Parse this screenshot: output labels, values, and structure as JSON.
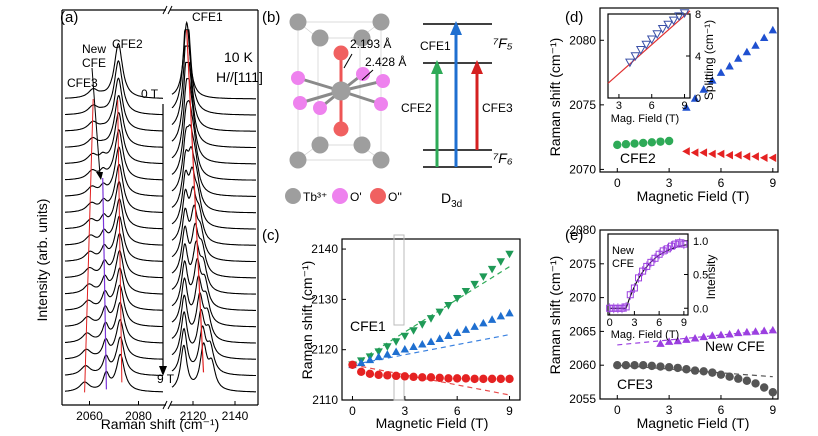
{
  "chart_data": [
    {
      "panel": "(a)",
      "type": "line",
      "xlabel": "Raman shift (cm⁻¹)",
      "ylabel": "Intensity (arb. units)",
      "xticks_left": [
        "2060",
        "2080"
      ],
      "xticks_right": [
        "2120",
        "2140"
      ],
      "xlim_left": [
        2050,
        2090
      ],
      "xlim_right": [
        2110,
        2150
      ],
      "annotations": {
        "cfe3": "CFE3",
        "new_cfe": "New CFE",
        "cfe2": "CFE2",
        "cfe1": "CFE1",
        "temp": "10 K",
        "field_dir": "H//[111]",
        "start_field": "0 T",
        "end_field": "9 T"
      },
      "fields_T": [
        0,
        0.5,
        1,
        1.5,
        2,
        2.5,
        3,
        3.5,
        4,
        4.5,
        5,
        5.5,
        6,
        6.5,
        7,
        7.5,
        8,
        8.5,
        9
      ],
      "peaks": {
        "cfe3_x": [
          2061.5,
          2061.5,
          2061.4,
          2061.3,
          2061.2,
          2061.1,
          2061,
          2060.8,
          2060.6,
          2060.4,
          2060.2,
          2060,
          2059.8,
          2059.5,
          2059.2,
          2059,
          2058.7,
          2058.4,
          2058
        ],
        "cfe2_x": [
          2071.8,
          2071.8,
          2071.8,
          2071.9,
          2071.9,
          2072,
          2072,
          2072.1,
          2072.1,
          2072.2,
          2072.2,
          2072.3,
          2072.3,
          2072.4,
          2072.4,
          2072.5,
          2072.5,
          2072.6,
          2072.6
        ],
        "cfe1_x": [
          2117,
          2117,
          2117.2,
          2117.5,
          2118,
          2118.4,
          2118.8,
          2119.2,
          2119.6,
          2120,
          2120.5,
          2121,
          2121.5,
          2122,
          2122.6,
          2123.2,
          2123.8,
          2124.5,
          2125
        ]
      }
    },
    {
      "panel": "(b)",
      "type": "diagram",
      "bond1": "2.193 Å",
      "bond2": "2.428 Å",
      "legend": [
        "Tb³⁺",
        "O'",
        "O''"
      ],
      "levels": {
        "upper": "⁷F₅",
        "lower": "⁷F₆"
      },
      "transitions": [
        "CFE1",
        "CFE2",
        "CFE3"
      ],
      "symmetry": "D",
      "symmetry_sub": "3d",
      "colors": {
        "tb": "#9e9e9e",
        "o_prime": "#ee82ee",
        "o_dprime": "#f06060",
        "cfe1": "#1f6fd0",
        "cfe2": "#2eaa57",
        "cfe3": "#d42020"
      }
    },
    {
      "panel": "(c)",
      "type": "scatter",
      "xlabel": "Magnetic Field (T)",
      "ylabel": "Raman shift (cm⁻¹)",
      "xlim": [
        -0.6,
        9.6
      ],
      "ylim": [
        2110,
        2142
      ],
      "xticks": [
        0,
        3,
        6,
        9
      ],
      "yticks": [
        2110,
        2120,
        2130,
        2140
      ],
      "annotation": "CFE1",
      "series": [
        {
          "color": "#1f9a57",
          "marker": "triangle-down",
          "x": [
            0,
            0.5,
            1,
            1.5,
            2,
            2.5,
            3,
            3.5,
            4,
            4.5,
            5,
            5.5,
            6,
            6.5,
            7,
            7.5,
            8,
            8.5,
            9
          ],
          "y": [
            2117,
            2117.8,
            2118.6,
            2119.6,
            2120.6,
            2121.6,
            2122.7,
            2123.8,
            2125,
            2126.2,
            2127.5,
            2128.8,
            2130.2,
            2131.6,
            2133,
            2134.5,
            2136,
            2137.5,
            2139
          ]
        },
        {
          "color": "#1f6fd0",
          "marker": "triangle-up",
          "x": [
            0,
            0.5,
            1,
            1.5,
            2,
            2.5,
            3,
            3.5,
            4,
            4.5,
            5,
            5.5,
            6,
            6.5,
            7,
            7.5,
            8,
            8.5,
            9
          ],
          "y": [
            2117,
            2117.4,
            2118,
            2118.6,
            2119.1,
            2119.6,
            2120.1,
            2120.6,
            2121.1,
            2121.6,
            2122.2,
            2122.8,
            2123.4,
            2124,
            2124.6,
            2125.3,
            2126,
            2126.7,
            2127.3
          ]
        },
        {
          "color": "#e52222",
          "marker": "circle",
          "x": [
            0,
            0.5,
            1,
            1.5,
            2,
            2.5,
            3,
            3.5,
            4,
            4.5,
            5,
            5.5,
            6,
            6.5,
            7,
            7.5,
            8,
            8.5,
            9
          ],
          "y": [
            2117,
            2115.6,
            2115.2,
            2115,
            2114.9,
            2114.8,
            2114.7,
            2114.6,
            2114.5,
            2114.5,
            2114.4,
            2114.3,
            2114.3,
            2114.3,
            2114.2,
            2114.2,
            2114.2,
            2114.2,
            2114.2
          ]
        }
      ],
      "fits": [
        {
          "color": "#2eaa57",
          "x": [
            0,
            9
          ],
          "y": [
            2117,
            2136.5
          ]
        },
        {
          "color": "#3b82e0",
          "x": [
            0,
            9
          ],
          "y": [
            2117,
            2123
          ]
        },
        {
          "color": "#e84a4a",
          "x": [
            0,
            9
          ],
          "y": [
            2117,
            2111
          ]
        }
      ]
    },
    {
      "panel": "(d)",
      "type": "scatter",
      "xlabel": "Magnetic Field (T)",
      "ylabel": "Raman shift (cm⁻¹)",
      "xlim": [
        -1,
        9.3
      ],
      "ylim": [
        2069.8,
        2082.5
      ],
      "xticks": [
        0,
        3,
        6,
        9
      ],
      "yticks": [
        2070,
        2075,
        2080
      ],
      "annotation": "CFE2",
      "series": [
        {
          "color": "#2eaa57",
          "marker": "circle",
          "x": [
            0,
            0.5,
            1,
            1.5,
            2,
            2.5,
            3
          ],
          "y": [
            2071.9,
            2071.95,
            2072,
            2072.05,
            2072.1,
            2072.15,
            2072.2
          ]
        },
        {
          "color": "#1f50d0",
          "marker": "triangle-up",
          "x": [
            4,
            4.5,
            5,
            5.5,
            6,
            6.5,
            7,
            7.5,
            8,
            8.5,
            9
          ],
          "y": [
            2074.8,
            2075.5,
            2076.2,
            2076.9,
            2077.5,
            2078,
            2078.6,
            2079.1,
            2079.6,
            2080.2,
            2080.8
          ]
        },
        {
          "color": "#e52222",
          "marker": "triangle-left",
          "x": [
            4,
            4.5,
            5,
            5.5,
            6,
            6.5,
            7,
            7.5,
            8,
            8.5,
            9
          ],
          "y": [
            2071.4,
            2071.3,
            2071.3,
            2071.2,
            2071.2,
            2071.1,
            2071.1,
            2071,
            2071,
            2070.9,
            2070.9
          ]
        }
      ],
      "inset": {
        "xlabel": "Mag. Field (T)",
        "ylabel": "Splitting (cm⁻¹)",
        "xlim": [
          2,
          9.5
        ],
        "ylim": [
          0,
          8
        ],
        "xticks": [
          3,
          6,
          9
        ],
        "yticks": [
          0,
          4,
          8
        ],
        "x": [
          4,
          4.5,
          5,
          5.5,
          6,
          6.5,
          7,
          7.5,
          8,
          8.5,
          9
        ],
        "y": [
          3.4,
          4,
          4.6,
          5.1,
          5.6,
          6.1,
          6.6,
          7,
          7.4,
          7.8,
          8.1
        ],
        "fit": {
          "x": [
            2,
            9.5
          ],
          "y": [
            1.4,
            8.3
          ]
        }
      }
    },
    {
      "panel": "(e)",
      "type": "scatter",
      "xlabel": "Magnetic Field (T)",
      "ylabel": "Raman shift (cm⁻¹)",
      "xlim": [
        -1,
        9.3
      ],
      "ylim": [
        2055,
        2080
      ],
      "xticks": [
        0,
        3,
        6,
        9
      ],
      "yticks": [
        2055,
        2060,
        2065,
        2070,
        2075,
        2080
      ],
      "annotations": {
        "new_cfe": "New CFE",
        "cfe3": "CFE3"
      },
      "series": [
        {
          "color": "#9b3fe0",
          "marker": "triangle-up",
          "x": [
            2.5,
            3,
            3.5,
            4,
            4.5,
            5,
            5.5,
            6,
            6.5,
            7,
            7.5,
            8,
            8.5,
            9
          ],
          "y": [
            2063.2,
            2063.5,
            2063.6,
            2063.8,
            2064,
            2064.2,
            2064.4,
            2064.5,
            2064.6,
            2064.8,
            2064.9,
            2065,
            2065.1,
            2065.2
          ]
        },
        {
          "color": "#555555",
          "marker": "circle",
          "x": [
            0,
            0.5,
            1,
            1.5,
            2,
            2.5,
            3,
            3.5,
            4,
            4.5,
            5,
            5.5,
            6,
            6.5,
            7,
            7.5,
            8,
            8.5,
            9
          ],
          "y": [
            2060,
            2060,
            2060,
            2060,
            2059.9,
            2059.8,
            2059.7,
            2059.6,
            2059.4,
            2059.2,
            2059.1,
            2058.9,
            2058.6,
            2058.3,
            2058,
            2057.7,
            2057.3,
            2056.7,
            2056
          ]
        }
      ],
      "fits": [
        {
          "color": "#9b3fe0",
          "x": [
            0,
            9
          ],
          "y": [
            2063,
            2065.2
          ]
        },
        {
          "color": "#555555",
          "x": [
            0,
            9
          ],
          "y": [
            2060,
            2058.3
          ]
        }
      ],
      "inset": {
        "label": "New CFE",
        "xlabel": "Mag. Field (T)",
        "ylabel": "Intensity",
        "xlim": [
          -0.2,
          9.5
        ],
        "ylim": [
          -0.1,
          1.1
        ],
        "xticks": [
          0,
          3,
          6,
          9
        ],
        "yticks": [
          0.0,
          0.5,
          1.0
        ],
        "x": [
          0,
          0.5,
          1,
          1.5,
          2,
          2.5,
          3,
          3.5,
          4,
          4.5,
          5,
          5.5,
          6,
          6.5,
          7,
          7.5,
          8,
          8.5,
          9
        ],
        "y": [
          0,
          0,
          0,
          0,
          0.02,
          0.2,
          0.3,
          0.45,
          0.55,
          0.62,
          0.68,
          0.74,
          0.8,
          0.85,
          0.88,
          0.92,
          0.95,
          0.97,
          0.95
        ]
      }
    }
  ]
}
